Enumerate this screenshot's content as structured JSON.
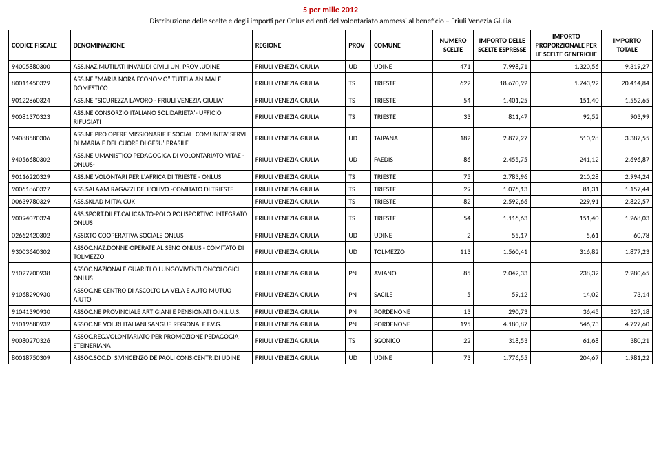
{
  "title_line1": "5 per mille 2012",
  "title_line2": "Distribuzione delle scelte e degli importi per Onlus ed enti del volontariato ammessi al beneficio – Friuli Venezia Giulia",
  "columns": {
    "cf": "CODICE FISCALE",
    "den": "DENOMINAZIONE",
    "reg": "REGIONE",
    "prov": "PROV",
    "com": "COMUNE",
    "ns": "NUMERO SCELTE",
    "ide": "IMPORTO DELLE SCELTE ESPRESSE",
    "ipg": "IMPORTO PROPORZIONALE PER LE SCELTE GENERICHE",
    "it": "IMPORTO TOTALE"
  },
  "rows": [
    {
      "cf": "94005880300",
      "den": "ASS.NAZ.MUTILATI INVALIDI CIVILI UN. PROV .UDINE",
      "reg": "FRIULI VENEZIA GIULIA",
      "prov": "UD",
      "com": "UDINE",
      "ns": "471",
      "ide": "7.998,71",
      "ipg": "1.320,56",
      "it": "9.319,27"
    },
    {
      "cf": "80011450329",
      "den": "ASS.NE \"MARIA NORA ECONOMO\" TUTELA ANIMALE DOMESTICO",
      "reg": "FRIULI VENEZIA GIULIA",
      "prov": "TS",
      "com": "TRIESTE",
      "ns": "622",
      "ide": "18.670,92",
      "ipg": "1.743,92",
      "it": "20.414,84"
    },
    {
      "cf": "90122860324",
      "den": "ASS.NE \"SICUREZZA LAVORO - FRIULI VENEZIA GIULIA\"",
      "reg": "FRIULI VENEZIA GIULIA",
      "prov": "TS",
      "com": "TRIESTE",
      "ns": "54",
      "ide": "1.401,25",
      "ipg": "151,40",
      "it": "1.552,65"
    },
    {
      "cf": "90081370323",
      "den": "ASS.NE CONSORZIO ITALIANO SOLIDARIETA'- UFFICIO RIFUGIATI",
      "reg": "FRIULI VENEZIA GIULIA",
      "prov": "TS",
      "com": "TRIESTE",
      "ns": "33",
      "ide": "811,47",
      "ipg": "92,52",
      "it": "903,99"
    },
    {
      "cf": "94088580306",
      "den": "ASS.NE PRO OPERE MISSIONARIE E SOCIALI COMUNITA' SERVI DI MARIA E DEL CUORE DI GESU' BRASILE",
      "reg": "FRIULI VENEZIA GIULIA",
      "prov": "UD",
      "com": "TAIPANA",
      "ns": "182",
      "ide": "2.877,27",
      "ipg": "510,28",
      "it": "3.387,55"
    },
    {
      "cf": "94056680302",
      "den": "ASS.NE UMANISTICO PEDAGOGICA DI VOLONTARIATO VITAE -ONLUS-",
      "reg": "FRIULI VENEZIA GIULIA",
      "prov": "UD",
      "com": "FAEDIS",
      "ns": "86",
      "ide": "2.455,75",
      "ipg": "241,12",
      "it": "2.696,87"
    },
    {
      "cf": "90116220329",
      "den": "ASS.NE VOLONTARI PER L'AFRICA DI TRIESTE - ONLUS",
      "reg": "FRIULI VENEZIA GIULIA",
      "prov": "TS",
      "com": "TRIESTE",
      "ns": "75",
      "ide": "2.783,96",
      "ipg": "210,28",
      "it": "2.994,24"
    },
    {
      "cf": "90061860327",
      "den": "ASS.SALAAM RAGAZZI DELL'OLIVO -COMITATO DI TRIESTE",
      "reg": "FRIULI VENEZIA GIULIA",
      "prov": "TS",
      "com": "TRIESTE",
      "ns": "29",
      "ide": "1.076,13",
      "ipg": "81,31",
      "it": "1.157,44"
    },
    {
      "cf": "00639780329",
      "den": "ASS.SKLAD MITJA CUK",
      "reg": "FRIULI VENEZIA GIULIA",
      "prov": "TS",
      "com": "TRIESTE",
      "ns": "82",
      "ide": "2.592,66",
      "ipg": "229,91",
      "it": "2.822,57"
    },
    {
      "cf": "90094070324",
      "den": "ASS.SPORT.DILET.CALICANTO-POLO POLISPORTIVO INTEGRATO ONLUS",
      "reg": "FRIULI VENEZIA GIULIA",
      "prov": "TS",
      "com": "TRIESTE",
      "ns": "54",
      "ide": "1.116,63",
      "ipg": "151,40",
      "it": "1.268,03"
    },
    {
      "cf": "02662420302",
      "den": "ASSIXTO COOPERATIVA SOCIALE ONLUS",
      "reg": "FRIULI VENEZIA GIULIA",
      "prov": "UD",
      "com": "UDINE",
      "ns": "2",
      "ide": "55,17",
      "ipg": "5,61",
      "it": "60,78"
    },
    {
      "cf": "93003640302",
      "den": "ASSOC.NAZ.DONNE OPERATE AL SENO ONLUS - COMITATO DI TOLMEZZO",
      "reg": "FRIULI VENEZIA GIULIA",
      "prov": "UD",
      "com": "TOLMEZZO",
      "ns": "113",
      "ide": "1.560,41",
      "ipg": "316,82",
      "it": "1.877,23"
    },
    {
      "cf": "91027700938",
      "den": "ASSOC.NAZIONALE GUARITI O LUNGOVIVENTI ONCOLOGICI ONLUS",
      "reg": "FRIULI VENEZIA GIULIA",
      "prov": "PN",
      "com": "AVIANO",
      "ns": "85",
      "ide": "2.042,33",
      "ipg": "238,32",
      "it": "2.280,65"
    },
    {
      "cf": "91068290930",
      "den": "ASSOC.NE CENTRO DI ASCOLTO LA VELA E AUTO MUTUO AIUTO",
      "reg": "FRIULI VENEZIA GIULIA",
      "prov": "PN",
      "com": "SACILE",
      "ns": "5",
      "ide": "59,12",
      "ipg": "14,02",
      "it": "73,14"
    },
    {
      "cf": "91041390930",
      "den": "ASSOC.NE PROVINCIALE ARTIGIANI E PENSIONATI O.N.L.U.S.",
      "reg": "FRIULI VENEZIA GIULIA",
      "prov": "PN",
      "com": "PORDENONE",
      "ns": "13",
      "ide": "290,73",
      "ipg": "36,45",
      "it": "327,18"
    },
    {
      "cf": "91019680932",
      "den": "ASSOC.NE VOL.RI ITALIANI SANGUE REGIONALE F.V.G.",
      "reg": "FRIULI VENEZIA GIULIA",
      "prov": "PN",
      "com": "PORDENONE",
      "ns": "195",
      "ide": "4.180,87",
      "ipg": "546,73",
      "it": "4.727,60"
    },
    {
      "cf": "90080270326",
      "den": "ASSOC.REG.VOLONTARIATO PER PROMOZIONE PEDAGOGIA STEINERIANA",
      "reg": "FRIULI VENEZIA GIULIA",
      "prov": "TS",
      "com": "SGONICO",
      "ns": "22",
      "ide": "318,53",
      "ipg": "61,68",
      "it": "380,21"
    },
    {
      "cf": "80018750309",
      "den": "ASSOC.SOC.DI S.VINCENZO DE'PAOLI CONS.CENTR.DI UDINE",
      "reg": "FRIULI VENEZIA GIULIA",
      "prov": "UD",
      "com": "UDINE",
      "ns": "73",
      "ide": "1.776,55",
      "ipg": "204,67",
      "it": "1.981,22"
    }
  ]
}
